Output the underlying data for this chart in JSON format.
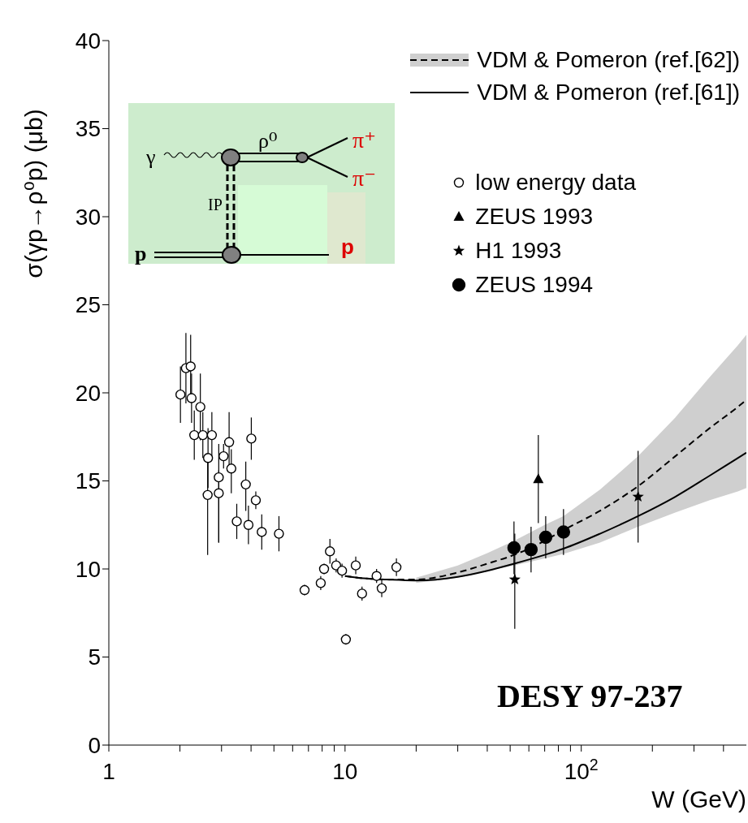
{
  "chart_data": {
    "type": "scatter",
    "ylabel": "σ(γp→ρ⁰p) (μb)",
    "xlabel": "W (GeV)",
    "log": "x",
    "xlim": [
      1,
      500
    ],
    "ylim": [
      0,
      40
    ],
    "xticks": [
      1,
      {
        "value": 2,
        "label": null
      },
      {
        "value": 3,
        "label": null
      },
      {
        "value": 4,
        "label": null
      },
      {
        "value": 5,
        "label": null
      },
      {
        "value": 6,
        "label": null
      },
      {
        "value": 7,
        "label": null
      },
      {
        "value": 8,
        "label": null
      },
      {
        "value": 9,
        "label": null
      },
      10,
      {
        "value": 20,
        "label": null
      },
      {
        "value": 30,
        "label": null
      },
      {
        "value": 40,
        "label": null
      },
      {
        "value": 50,
        "label": null
      },
      {
        "value": 60,
        "label": null
      },
      {
        "value": 70,
        "label": null
      },
      {
        "value": 80,
        "label": null
      },
      {
        "value": 90,
        "label": null
      },
      {
        "value": 100,
        "label": "10$^{2}$"
      },
      {
        "value": 200,
        "label": null
      },
      {
        "value": 300,
        "label": null
      },
      {
        "value": 400,
        "label": null
      }
    ],
    "yticks": [
      0,
      5,
      10,
      15,
      20,
      25,
      30,
      35,
      40
    ],
    "legend": "top right",
    "annotations": [
      "DESY 97-237",
      "γ",
      "ρ⁰",
      "π⁺",
      "π⁻",
      "IP",
      "p",
      "p"
    ],
    "series": [
      {
        "name": "VDM & Pomeron (ref.[62])",
        "type": "line",
        "line_style": "dashed",
        "color": "#000000",
        "x": [
          10,
          12,
          15,
          20,
          30,
          40,
          52,
          70,
          84,
          120,
          174,
          250,
          350,
          460,
          500
        ],
        "values": [
          9.6,
          9.47,
          9.4,
          9.4,
          9.8,
          10.3,
          10.8,
          11.6,
          12.2,
          13.3,
          14.7,
          16.4,
          18.0,
          19.2,
          19.6
        ],
        "lower": [
          null,
          null,
          null,
          9.2,
          9.5,
          9.9,
          10.2,
          10.6,
          10.85,
          11.5,
          12.4,
          13.2,
          13.9,
          14.4,
          14.6
        ],
        "upper": [
          null,
          null,
          null,
          9.5,
          10.2,
          10.9,
          11.6,
          12.5,
          13.0,
          14.5,
          16.4,
          18.6,
          20.9,
          22.7,
          23.3
        ]
      },
      {
        "name": "VDM & Pomeron (ref.[61])",
        "type": "line",
        "line_style": "solid",
        "color": "#000000",
        "x": [
          10,
          12,
          15,
          20,
          30,
          40,
          52,
          70,
          84,
          120,
          174,
          250,
          350,
          460,
          500
        ],
        "values": [
          9.6,
          9.47,
          9.4,
          9.34,
          9.55,
          9.9,
          10.3,
          10.8,
          11.15,
          12.0,
          13.0,
          14.1,
          15.3,
          16.3,
          16.6
        ]
      },
      {
        "name": "low energy data",
        "marker": "circle",
        "color": "#000000",
        "x": [
          2.01,
          2.12,
          2.22,
          2.24,
          2.44,
          2.3,
          2.5,
          2.73,
          2.63,
          3.23,
          3.06,
          2.92,
          2.62,
          2.92,
          3.3,
          4.01,
          3.8,
          4.19,
          3.48,
          3.9,
          4.44,
          5.25,
          6.74,
          7.89,
          8.15,
          8.63,
          9.17,
          9.71,
          10.08,
          11.1,
          11.8,
          13.6,
          14.3,
          16.5
        ],
        "values": [
          19.9,
          21.4,
          21.5,
          19.7,
          19.2,
          17.6,
          17.6,
          17.6,
          16.3,
          17.2,
          16.4,
          15.2,
          14.2,
          14.3,
          15.7,
          17.4,
          14.8,
          13.9,
          12.7,
          12.5,
          12.1,
          12.0,
          8.8,
          9.2,
          10.0,
          11.0,
          10.2,
          9.9,
          6.0,
          10.2,
          8.6,
          9.6,
          8.9,
          10.1
        ],
        "errors": [
          1.6,
          2.0,
          1.8,
          1.4,
          1.9,
          1.4,
          1.3,
          1.3,
          [
            14.6,
            18.0
          ],
          1.7,
          0.7,
          [
            11.5,
            17.1
          ],
          [
            10.8,
            16.3
          ],
          [
            11.5,
            15.6
          ],
          [
            14.3,
            16.8
          ],
          1.2,
          [
            13.3,
            16.1
          ],
          0.5,
          1.0,
          1.1,
          1.0,
          1.0,
          0.3,
          0.4,
          0.3,
          0.7,
          0.4,
          0.4,
          0.3,
          0.5,
          0.4,
          0.4,
          0.5,
          0.5
        ]
      },
      {
        "name": "ZEUS 1993",
        "marker": "triangle",
        "color": "#000000",
        "x": [
          65.8
        ],
        "values": [
          15.1
        ],
        "errors": [
          2.5
        ]
      },
      {
        "name": "H1 1993",
        "marker": "star",
        "color": "#000000",
        "x": [
          52.3,
          174
        ],
        "values": [
          9.4,
          14.1
        ],
        "errors": [
          [
            6.6,
            12.0
          ],
          [
            11.5,
            16.7
          ]
        ]
      },
      {
        "name": "ZEUS 1994",
        "marker": "circle",
        "color": "#000000",
        "x": [
          51.9,
          61.3,
          70.7,
          84.1
        ],
        "values": [
          11.2,
          11.1,
          11.8,
          12.1
        ],
        "errors": [
          1.5,
          1.3,
          1.2,
          1.3
        ]
      }
    ]
  }
}
